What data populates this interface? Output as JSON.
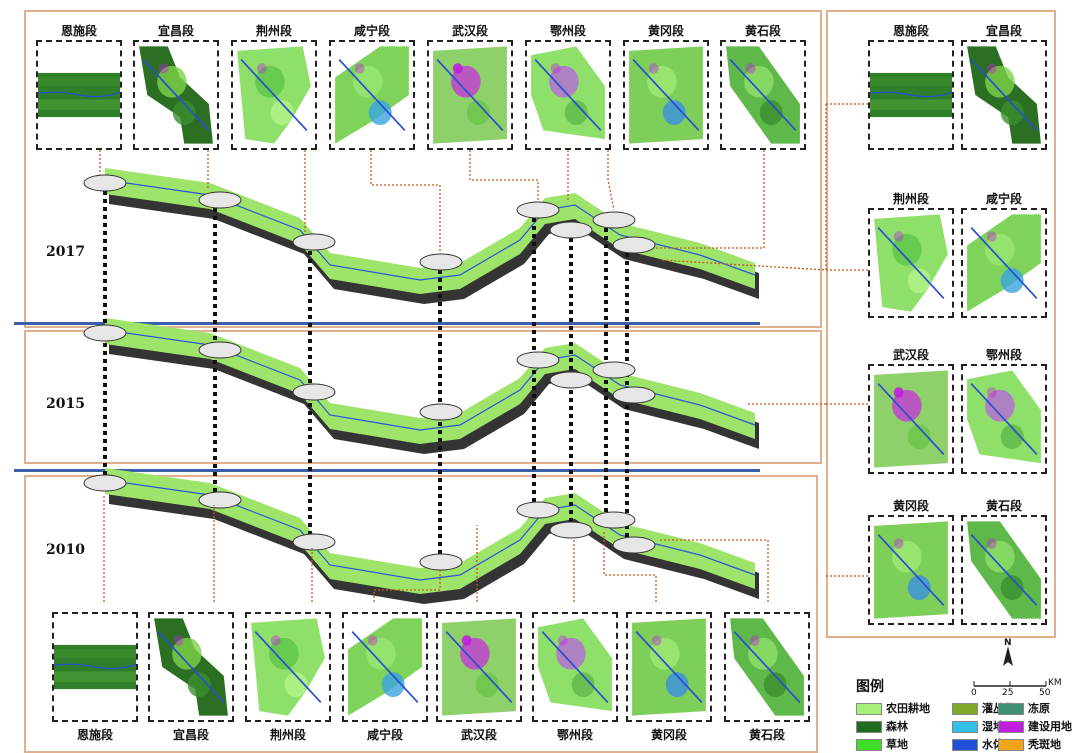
{
  "years": [
    "2017",
    "2015",
    "2010"
  ],
  "segments": [
    "恩施段",
    "宜昌段",
    "荆州段",
    "咸宁段",
    "武汉段",
    "鄂州段",
    "黄冈段",
    "黄石段"
  ],
  "legend": {
    "title": "图例",
    "items": [
      {
        "label": "农田耕地",
        "color": "#a6f07a"
      },
      {
        "label": "灌丛带",
        "color": "#7fa82a"
      },
      {
        "label": "冻原",
        "color": "#3f8f74"
      },
      {
        "label": "森林",
        "color": "#1f6b1f"
      },
      {
        "label": "湿地",
        "color": "#33c0e8"
      },
      {
        "label": "建设用地",
        "color": "#c21ee0"
      },
      {
        "label": "草地",
        "color": "#3fdc2a"
      },
      {
        "label": "水体",
        "color": "#1f4fd8"
      },
      {
        "label": "秃斑地",
        "color": "#f2a51a"
      }
    ]
  },
  "scale": {
    "north": "N",
    "unit": "KM",
    "ticks": [
      "0",
      "25",
      "50"
    ]
  }
}
